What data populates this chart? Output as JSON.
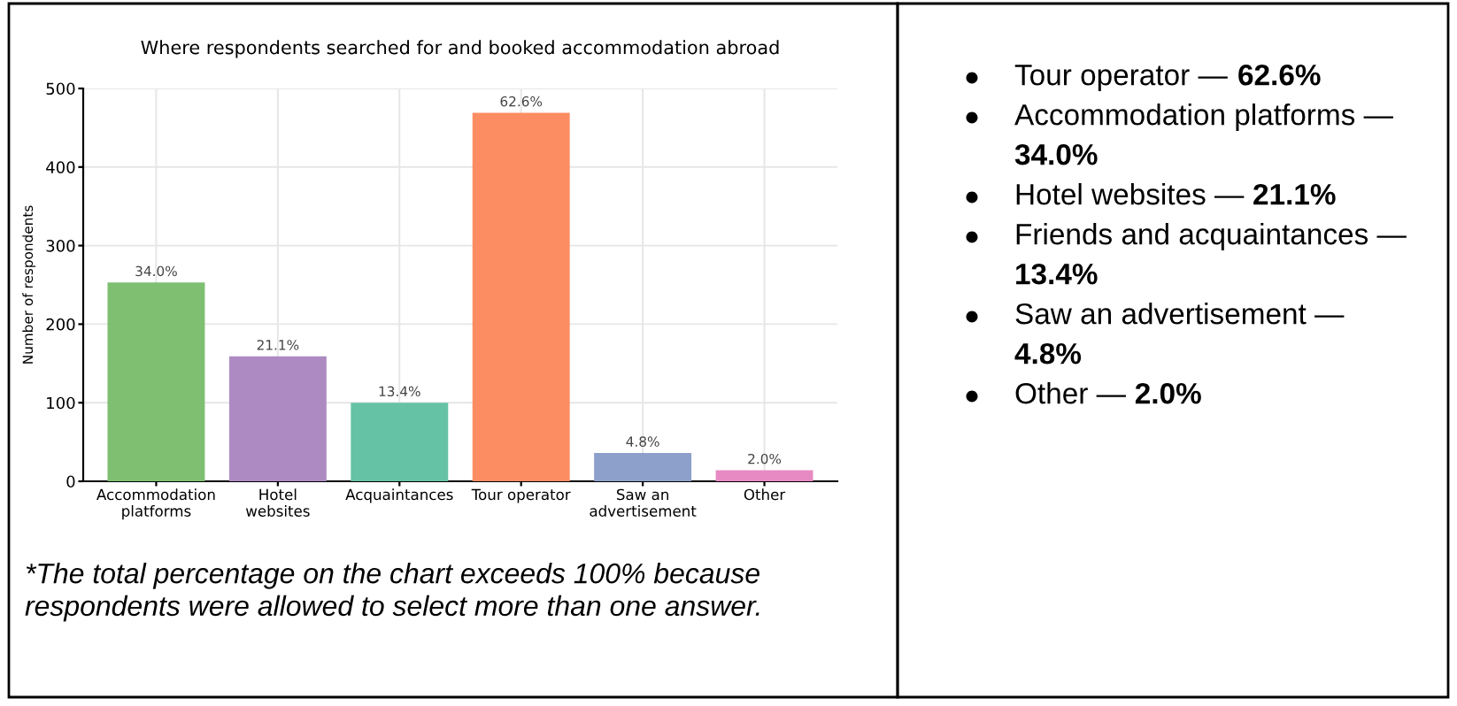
{
  "chart_data": [
    {
      "type": "bar",
      "title": "Where respondents searched for and booked accommodation abroad",
      "ylabel": "Number of respondents",
      "categories": [
        "Accommodation\nplatforms",
        "Hotel\nwebsites",
        "Acquaintances",
        "Tour operator",
        "Saw an\nadvertisement",
        "Other"
      ],
      "values": [
        253,
        159,
        100,
        469,
        36,
        14
      ],
      "colors": [
        "#7fbf72",
        "#ad8bc2",
        "#66c2a5",
        "#fc8d62",
        "#8da0cb",
        "#e78ac3"
      ],
      "ylim": [
        0,
        500
      ],
      "yticks": [
        0,
        100,
        200,
        300,
        400,
        500
      ],
      "grid": true,
      "annotations": [
        {
          "text": "34.0%",
          "x": "Accommodation\nplatforms",
          "y": 253
        },
        {
          "text": "21.1%",
          "x": "Hotel\nwebsites",
          "y": 159
        },
        {
          "text": "13.4%",
          "x": "Acquaintances",
          "y": 100
        },
        {
          "text": "62.6%",
          "x": "Tour operator",
          "y": 469
        },
        {
          "text": "4.8%",
          "x": "Saw an\nadvertisement",
          "y": 36
        },
        {
          "text": "2.0%",
          "x": "Other",
          "y": 14
        },
        "*The total percentage on the chart exceeds 100% because\nrespondents were allowed to select more than one answer."
      ]
    },
    {
      "type": "other",
      "annotations": [
        "Tour operator — 62.6%",
        "Accommodation platforms — 34.0%",
        "Hotel websites — 21.1%",
        "Friends and acquaintances — 13.4%",
        "Saw an advertisement — 4.8%",
        "Other — 2.0%"
      ]
    }
  ]
}
